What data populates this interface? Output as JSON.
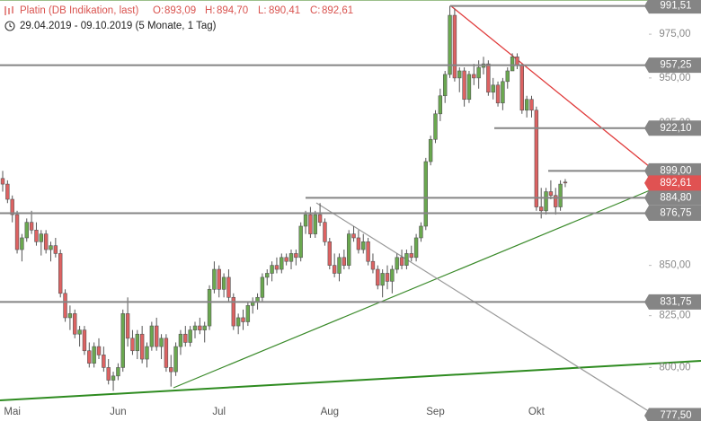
{
  "chart_data": {
    "type": "candlestick",
    "title": "Platin (DB Indikation, last)",
    "quote": [
      {
        "name": "O:",
        "value": "893,09"
      },
      {
        "name": "H:",
        "value": "894,70"
      },
      {
        "name": "L:",
        "value": "890,41"
      },
      {
        "name": "C:",
        "value": "892,61"
      }
    ],
    "subtitle": "29.04.2019 - 09.10.2019 (5 Monate, 1 Tag)",
    "categories": [
      null,
      null,
      "Mai",
      null,
      null,
      null,
      null,
      null,
      null,
      null,
      null,
      null,
      null,
      null,
      null,
      null,
      null,
      null,
      null,
      null,
      null,
      null,
      null,
      null,
      "Jun",
      null,
      null,
      null,
      null,
      null,
      null,
      null,
      null,
      null,
      null,
      null,
      null,
      null,
      null,
      null,
      null,
      null,
      null,
      null,
      null,
      "Jul",
      null,
      null,
      null,
      null,
      null,
      null,
      null,
      null,
      null,
      null,
      null,
      null,
      null,
      null,
      null,
      null,
      null,
      null,
      null,
      null,
      null,
      null,
      "Aug",
      null,
      null,
      null,
      null,
      null,
      null,
      null,
      null,
      null,
      null,
      null,
      null,
      null,
      null,
      null,
      null,
      null,
      null,
      null,
      null,
      null,
      "Sep",
      null,
      null,
      null,
      null,
      null,
      null,
      null,
      null,
      null,
      null,
      null,
      null,
      null,
      null,
      null,
      null,
      null,
      null,
      null,
      null,
      "Okt",
      null,
      null,
      null,
      null,
      null,
      null
    ],
    "open": [
      895,
      892,
      884,
      876,
      858,
      864,
      872,
      868,
      862,
      866,
      858,
      860,
      856,
      836,
      824,
      826,
      816,
      818,
      808,
      802,
      810,
      806,
      800,
      794,
      796,
      800,
      826,
      814,
      808,
      816,
      804,
      810,
      820,
      810,
      814,
      800,
      798,
      810,
      816,
      812,
      818,
      820,
      818,
      820,
      838,
      848,
      838,
      844,
      834,
      820,
      824,
      822,
      830,
      832,
      834,
      844,
      846,
      850,
      848,
      854,
      852,
      856,
      854,
      870,
      876,
      866,
      876,
      872,
      862,
      850,
      846,
      854,
      850,
      866,
      864,
      858,
      862,
      852,
      848,
      840,
      846,
      842,
      848,
      854,
      850,
      856,
      854,
      864,
      870,
      904,
      916,
      930,
      940,
      952,
      986,
      950,
      954,
      938,
      952,
      950,
      956,
      958,
      942,
      946,
      936,
      948,
      954,
      962,
      957,
      932,
      938,
      932,
      880,
      878,
      888,
      886,
      880,
      893.09
    ],
    "high": [
      899,
      894,
      886,
      878,
      866,
      874,
      878,
      872,
      868,
      868,
      862,
      864,
      858,
      838,
      830,
      828,
      820,
      820,
      812,
      812,
      814,
      810,
      804,
      798,
      802,
      828,
      834,
      818,
      818,
      820,
      812,
      822,
      824,
      816,
      816,
      806,
      812,
      818,
      820,
      820,
      822,
      824,
      822,
      840,
      852,
      850,
      846,
      848,
      836,
      826,
      828,
      832,
      834,
      836,
      846,
      848,
      852,
      854,
      856,
      856,
      858,
      858,
      872,
      878,
      880,
      878,
      882,
      874,
      864,
      856,
      856,
      858,
      868,
      870,
      868,
      866,
      864,
      856,
      850,
      848,
      850,
      850,
      856,
      858,
      858,
      860,
      866,
      872,
      906,
      918,
      932,
      944,
      954,
      991.51,
      990,
      956,
      956,
      954,
      958,
      960,
      962,
      960,
      950,
      948,
      950,
      956,
      964,
      964,
      958,
      940,
      940,
      934,
      890,
      890,
      894,
      890,
      894,
      894.7
    ],
    "low": [
      888,
      882,
      872,
      856,
      852,
      862,
      866,
      860,
      855,
      856,
      852,
      854,
      834,
      822,
      818,
      814,
      810,
      806,
      800,
      800,
      804,
      798,
      792,
      789,
      794,
      798,
      810,
      806,
      804,
      802,
      800,
      808,
      808,
      804,
      798,
      791,
      796,
      806,
      810,
      810,
      814,
      816,
      812,
      818,
      836,
      834,
      834,
      832,
      818,
      816,
      818,
      820,
      826,
      828,
      832,
      840,
      842,
      846,
      846,
      850,
      848,
      850,
      852,
      866,
      864,
      864,
      870,
      860,
      848,
      844,
      842,
      848,
      848,
      862,
      856,
      856,
      850,
      846,
      838,
      834,
      838,
      836,
      846,
      848,
      848,
      852,
      852,
      862,
      868,
      902,
      914,
      926,
      936,
      950,
      948,
      942,
      934,
      936,
      946,
      944,
      952,
      940,
      938,
      934,
      932,
      944,
      954,
      955,
      930,
      928,
      928,
      878,
      874,
      876,
      884,
      876,
      878,
      890.41
    ],
    "close": [
      892,
      884,
      876,
      858,
      864,
      872,
      868,
      862,
      866,
      858,
      860,
      856,
      836,
      824,
      826,
      816,
      818,
      808,
      802,
      810,
      806,
      800,
      794,
      796,
      800,
      826,
      814,
      808,
      816,
      804,
      810,
      820,
      810,
      814,
      800,
      798,
      810,
      816,
      812,
      818,
      820,
      818,
      820,
      838,
      848,
      838,
      844,
      834,
      820,
      824,
      822,
      830,
      832,
      834,
      844,
      846,
      850,
      848,
      854,
      852,
      856,
      854,
      870,
      876,
      866,
      876,
      872,
      862,
      850,
      846,
      854,
      850,
      866,
      864,
      858,
      862,
      852,
      848,
      840,
      846,
      842,
      848,
      854,
      850,
      856,
      854,
      864,
      870,
      904,
      916,
      930,
      940,
      952,
      986,
      950,
      954,
      938,
      952,
      950,
      956,
      958,
      942,
      946,
      936,
      948,
      954,
      962,
      957,
      932,
      938,
      932,
      880,
      878,
      888,
      886,
      880,
      892,
      892.61
    ],
    "ylim": [
      775,
      995
    ],
    "y_scale": "log",
    "yticks": [
      {
        "value": 975,
        "label": "975,00"
      },
      {
        "value": 950,
        "label": "950,00"
      },
      {
        "value": 925,
        "label": "925,00"
      },
      {
        "value": 850,
        "label": "850,00"
      },
      {
        "value": 825,
        "label": "825,00"
      },
      {
        "value": 800,
        "label": "800,00"
      }
    ],
    "levels": [
      {
        "value": 991.51,
        "label": "991,51"
      },
      {
        "value": 957.25,
        "label": "957,25"
      },
      {
        "value": 922.1,
        "label": "922,10"
      },
      {
        "value": 899.0,
        "label": "899,00"
      },
      {
        "value": 884.8,
        "label": "884,80"
      },
      {
        "value": 876.75,
        "label": "876,75"
      },
      {
        "value": 831.75,
        "label": "831,75"
      },
      {
        "value": 777.5,
        "label": "777,50"
      }
    ],
    "last": {
      "value": 892.61,
      "label": "892,61",
      "color": "#e05252"
    },
    "colors": {
      "up": "#6aa84f",
      "down": "#dd6262",
      "level": "#858585"
    }
  }
}
